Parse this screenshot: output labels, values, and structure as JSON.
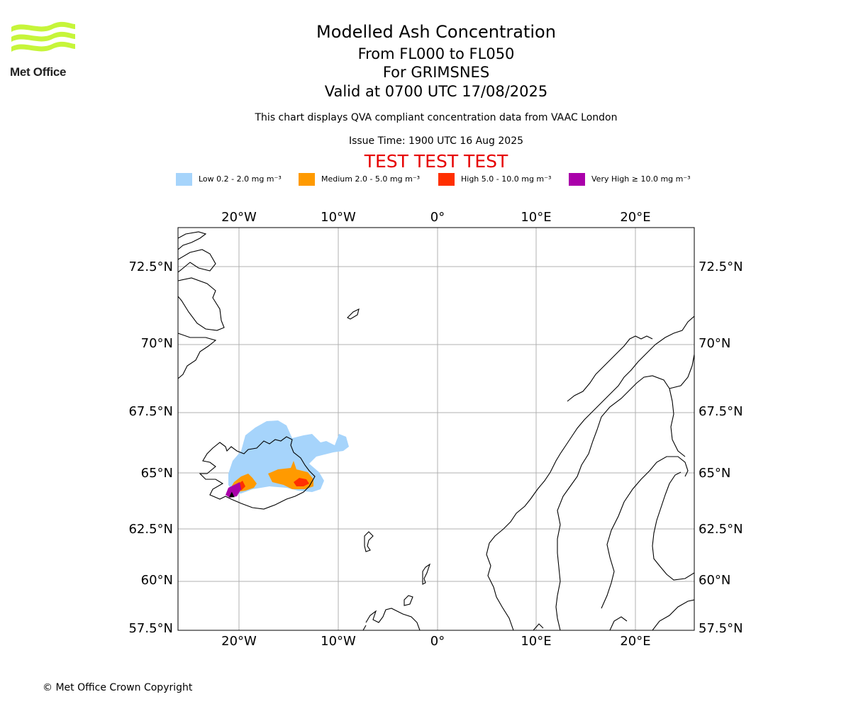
{
  "branding": {
    "logo_text": "Met Office"
  },
  "header": {
    "title": "Modelled Ash Concentration",
    "level_range": "From FL000 to FL050",
    "volcano": "For GRIMSNES",
    "valid_time": "Valid at 0700 UTC 17/08/2025",
    "compliance_note": "This chart displays QVA compliant concentration data from VAAC London",
    "issue_time": "Issue Time: 1900 UTC 16 Aug 2025",
    "test_banner": "TEST TEST TEST"
  },
  "legend": [
    {
      "label": "Low 0.2 - 2.0 mg m⁻³",
      "color": "#a6d4fb"
    },
    {
      "label": "Medium 2.0 - 5.0 mg m⁻³",
      "color": "#ff9a00"
    },
    {
      "label": "High 5.0 - 10.0 mg m⁻³",
      "color": "#ff2f00"
    },
    {
      "label": "Very High ≥ 10.0 mg m⁻³",
      "color": "#aa00aa"
    }
  ],
  "map": {
    "lon_ticks": [
      "20°W",
      "10°W",
      "0°",
      "10°E",
      "20°E"
    ],
    "lat_ticks": [
      "72.5°N",
      "70°N",
      "67.5°N",
      "65°N",
      "62.5°N",
      "60°N",
      "57.5°N"
    ],
    "grid": true
  },
  "footer": {
    "copyright": "© Met Office Crown Copyright"
  }
}
